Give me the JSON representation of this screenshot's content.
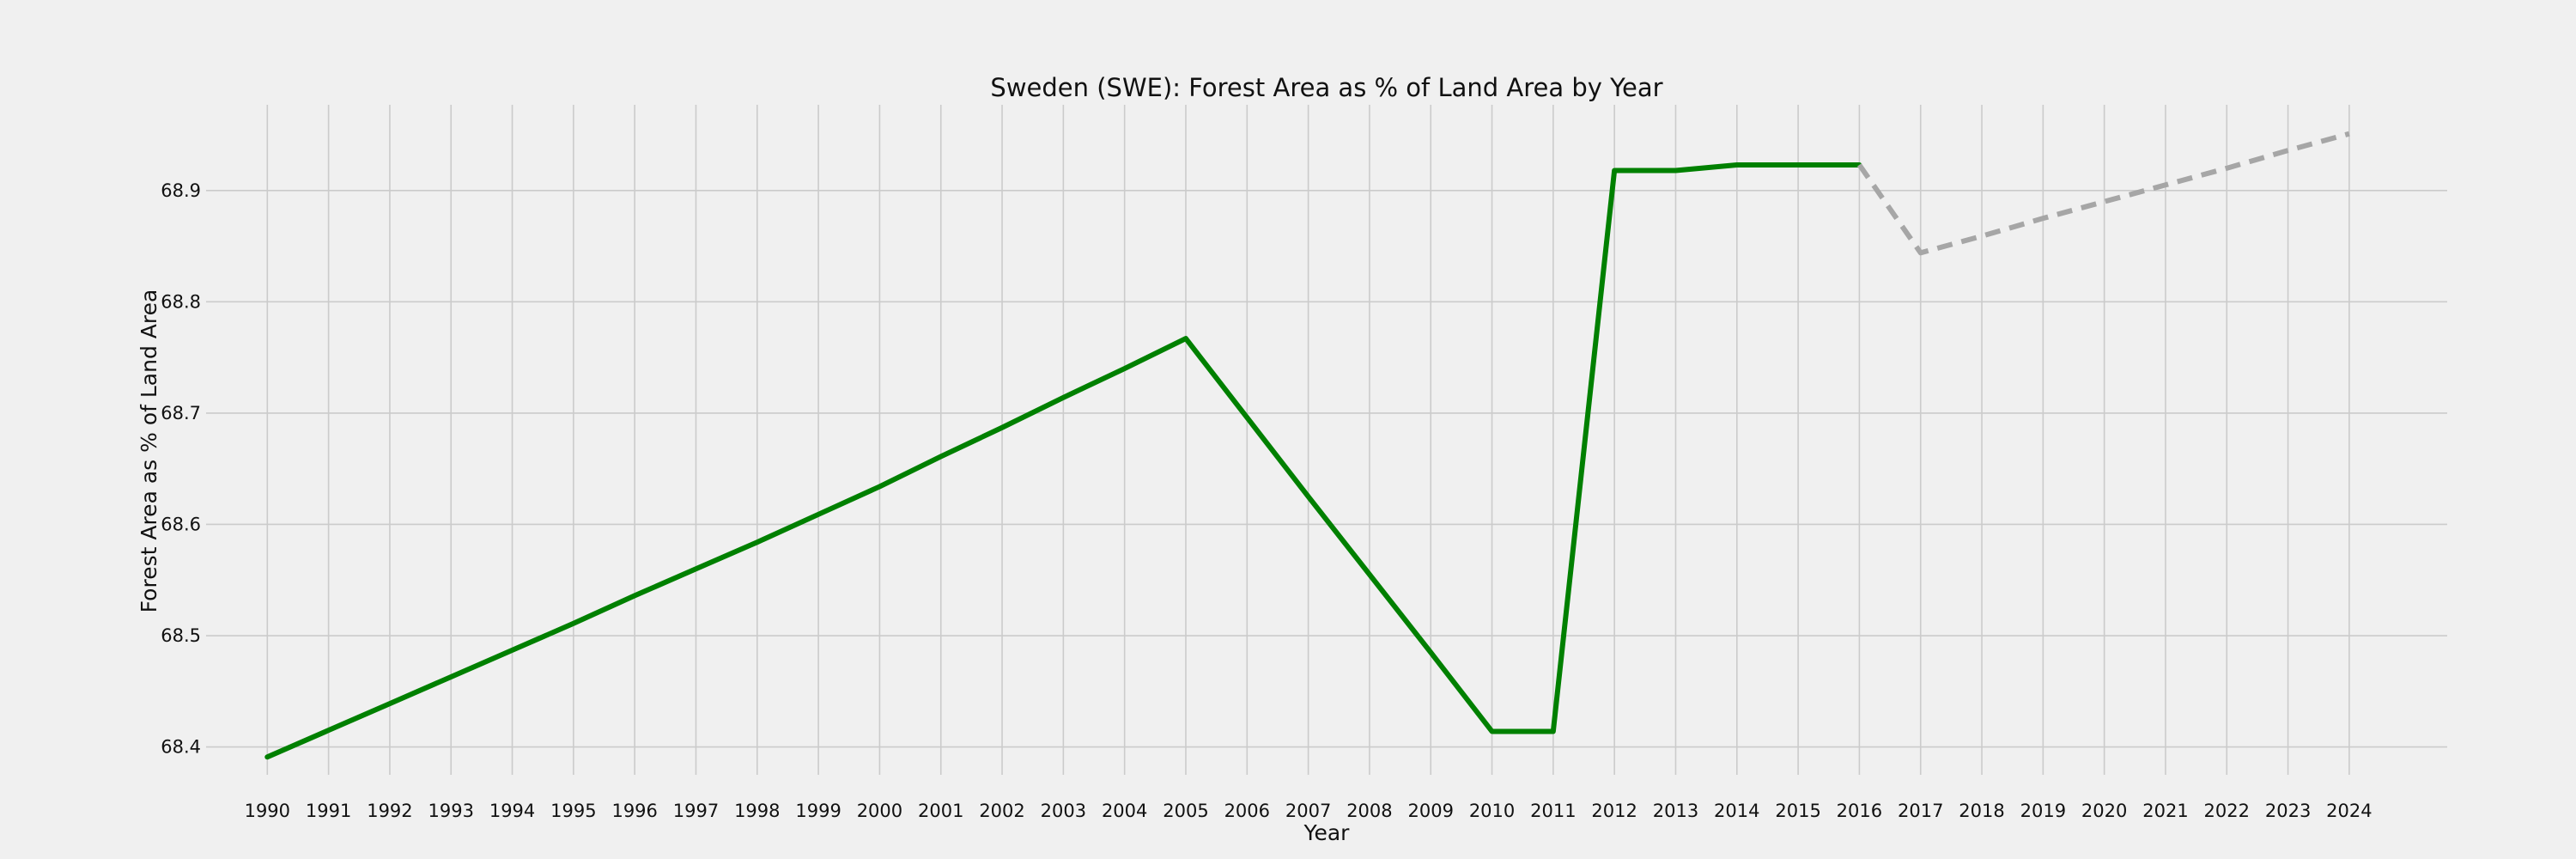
{
  "chart_data": {
    "type": "line",
    "title": "Sweden (SWE): Forest Area as % of Land Area by Year",
    "xlabel": "Year",
    "ylabel": "Forest Area as % of Land Area",
    "xlim": [
      1989.0,
      2025.6
    ],
    "ylim": [
      68.375,
      68.977
    ],
    "x_ticks": [
      1990,
      1991,
      1992,
      1993,
      1994,
      1995,
      1996,
      1997,
      1998,
      1999,
      2000,
      2001,
      2002,
      2003,
      2004,
      2005,
      2006,
      2007,
      2008,
      2009,
      2010,
      2011,
      2012,
      2013,
      2014,
      2015,
      2016,
      2017,
      2018,
      2019,
      2020,
      2021,
      2022,
      2023,
      2024
    ],
    "y_ticks": [
      68.4,
      68.5,
      68.6,
      68.7,
      68.8,
      68.9
    ],
    "y_tick_labels": [
      "68.4",
      "68.5",
      "68.6",
      "68.7",
      "68.8",
      "68.9"
    ],
    "grid": true,
    "series": [
      {
        "style": "solid",
        "color": "#008000",
        "x": [
          1990,
          1991,
          1992,
          1993,
          1994,
          1995,
          1996,
          1997,
          1998,
          1999,
          2000,
          2001,
          2002,
          2003,
          2004,
          2005,
          2006,
          2007,
          2008,
          2009,
          2010,
          2011,
          2012,
          2013,
          2014,
          2015,
          2016
        ],
        "values": [
          68.391,
          68.415,
          68.439,
          68.463,
          68.487,
          68.511,
          68.536,
          68.56,
          68.584,
          68.609,
          68.634,
          68.661,
          68.687,
          68.714,
          68.74,
          68.767,
          68.696,
          68.625,
          68.555,
          68.485,
          68.414,
          68.414,
          68.918,
          68.918,
          68.923,
          68.923,
          68.923
        ]
      },
      {
        "style": "dashed",
        "color": "#a6a6a6",
        "x": [
          2016,
          2017,
          2018,
          2019,
          2020,
          2021,
          2022,
          2023,
          2024
        ],
        "values": [
          68.923,
          68.844,
          68.859,
          68.875,
          68.89,
          68.905,
          68.92,
          68.936,
          68.951
        ]
      }
    ]
  }
}
